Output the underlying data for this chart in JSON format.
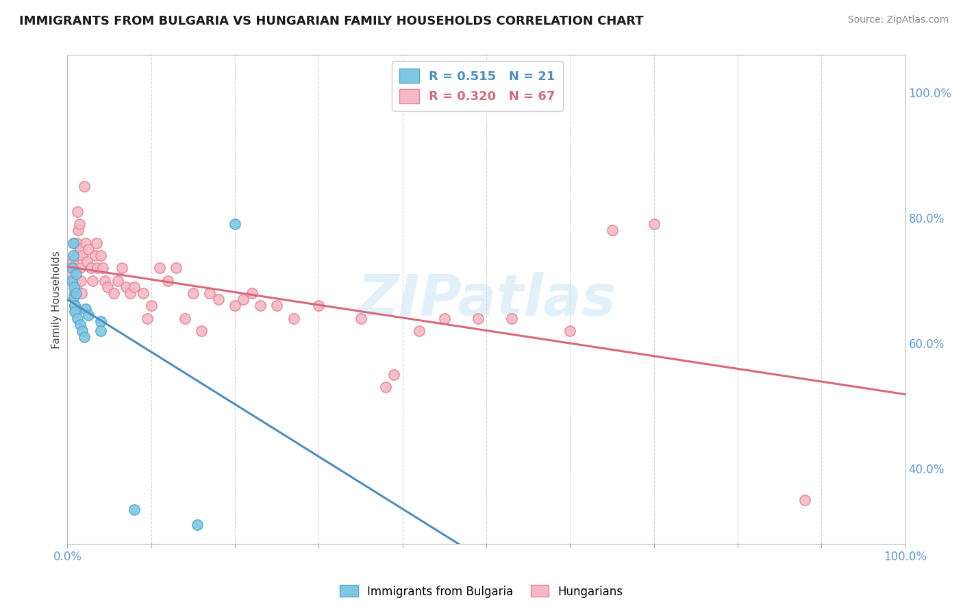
{
  "title": "IMMIGRANTS FROM BULGARIA VS HUNGARIAN FAMILY HOUSEHOLDS CORRELATION CHART",
  "source": "Source: ZipAtlas.com",
  "ylabel": "Family Households",
  "legend_label1": "Immigrants from Bulgaria",
  "legend_label2": "Hungarians",
  "r1": 0.515,
  "n1": 21,
  "r2": 0.32,
  "n2": 67,
  "color_blue": "#7ec8e3",
  "color_pink": "#f5b8c4",
  "color_blue_edge": "#5aaad0",
  "color_pink_edge": "#e88898",
  "color_blue_line": "#4a8fc0",
  "color_pink_line": "#d96878",
  "color_axis": "#5b9bd5",
  "watermark_text": "ZIPatlas",
  "xlim": [
    0,
    1
  ],
  "ylim": [
    0.28,
    1.06
  ],
  "right_yticks": [
    1.0,
    0.8,
    0.6,
    0.4
  ],
  "right_yticklabels": [
    "100.0%",
    "80.0%",
    "60.0%",
    "40.0%"
  ],
  "blue_points": [
    [
      0.005,
      0.7
    ],
    [
      0.005,
      0.72
    ],
    [
      0.007,
      0.74
    ],
    [
      0.007,
      0.76
    ],
    [
      0.008,
      0.69
    ],
    [
      0.008,
      0.675
    ],
    [
      0.009,
      0.66
    ],
    [
      0.009,
      0.65
    ],
    [
      0.01,
      0.68
    ],
    [
      0.01,
      0.71
    ],
    [
      0.012,
      0.64
    ],
    [
      0.015,
      0.63
    ],
    [
      0.018,
      0.62
    ],
    [
      0.02,
      0.61
    ],
    [
      0.022,
      0.655
    ],
    [
      0.025,
      0.645
    ],
    [
      0.04,
      0.635
    ],
    [
      0.04,
      0.62
    ],
    [
      0.08,
      0.335
    ],
    [
      0.155,
      0.31
    ],
    [
      0.2,
      0.79
    ]
  ],
  "pink_points": [
    [
      0.005,
      0.71
    ],
    [
      0.006,
      0.73
    ],
    [
      0.007,
      0.72
    ],
    [
      0.008,
      0.76
    ],
    [
      0.008,
      0.7
    ],
    [
      0.009,
      0.68
    ],
    [
      0.009,
      0.66
    ],
    [
      0.01,
      0.69
    ],
    [
      0.01,
      0.65
    ],
    [
      0.011,
      0.76
    ],
    [
      0.011,
      0.74
    ],
    [
      0.012,
      0.81
    ],
    [
      0.013,
      0.78
    ],
    [
      0.014,
      0.79
    ],
    [
      0.015,
      0.75
    ],
    [
      0.015,
      0.72
    ],
    [
      0.016,
      0.7
    ],
    [
      0.017,
      0.68
    ],
    [
      0.018,
      0.74
    ],
    [
      0.02,
      0.85
    ],
    [
      0.022,
      0.76
    ],
    [
      0.023,
      0.73
    ],
    [
      0.025,
      0.75
    ],
    [
      0.028,
      0.72
    ],
    [
      0.03,
      0.7
    ],
    [
      0.033,
      0.74
    ],
    [
      0.035,
      0.76
    ],
    [
      0.036,
      0.72
    ],
    [
      0.04,
      0.74
    ],
    [
      0.042,
      0.72
    ],
    [
      0.045,
      0.7
    ],
    [
      0.048,
      0.69
    ],
    [
      0.055,
      0.68
    ],
    [
      0.06,
      0.7
    ],
    [
      0.065,
      0.72
    ],
    [
      0.07,
      0.69
    ],
    [
      0.075,
      0.68
    ],
    [
      0.08,
      0.69
    ],
    [
      0.09,
      0.68
    ],
    [
      0.095,
      0.64
    ],
    [
      0.1,
      0.66
    ],
    [
      0.11,
      0.72
    ],
    [
      0.12,
      0.7
    ],
    [
      0.13,
      0.72
    ],
    [
      0.14,
      0.64
    ],
    [
      0.15,
      0.68
    ],
    [
      0.16,
      0.62
    ],
    [
      0.17,
      0.68
    ],
    [
      0.18,
      0.67
    ],
    [
      0.2,
      0.66
    ],
    [
      0.21,
      0.67
    ],
    [
      0.22,
      0.68
    ],
    [
      0.23,
      0.66
    ],
    [
      0.25,
      0.66
    ],
    [
      0.27,
      0.64
    ],
    [
      0.3,
      0.66
    ],
    [
      0.35,
      0.64
    ],
    [
      0.38,
      0.53
    ],
    [
      0.39,
      0.55
    ],
    [
      0.42,
      0.62
    ],
    [
      0.45,
      0.64
    ],
    [
      0.49,
      0.64
    ],
    [
      0.53,
      0.64
    ],
    [
      0.6,
      0.62
    ],
    [
      0.65,
      0.78
    ],
    [
      0.7,
      0.79
    ],
    [
      0.88,
      0.35
    ]
  ]
}
